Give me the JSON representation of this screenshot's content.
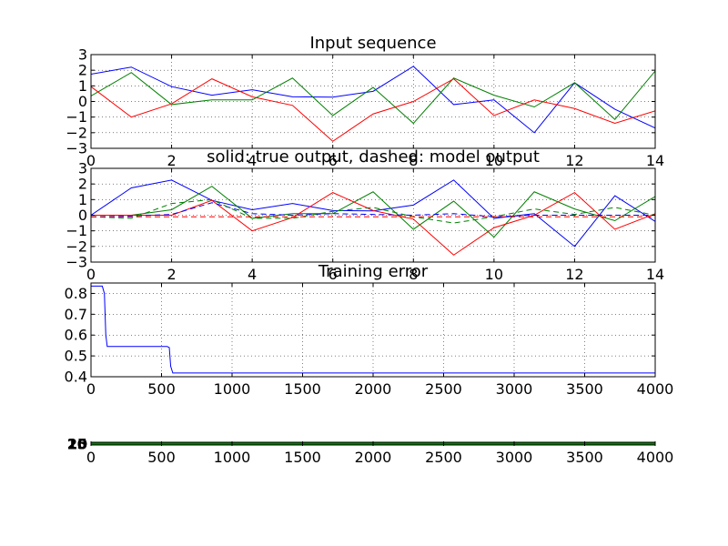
{
  "chart_data": [
    {
      "type": "line",
      "title": "Input sequence",
      "xlim": [
        0,
        14
      ],
      "ylim": [
        -3,
        3
      ],
      "xticks": [
        0,
        2,
        4,
        6,
        8,
        10,
        12,
        14
      ],
      "yticks": [
        -3,
        -2,
        -1,
        0,
        1,
        2,
        3
      ],
      "grid": true,
      "x": [
        0,
        1,
        2,
        3,
        4,
        5,
        6,
        7,
        8,
        9,
        10,
        11,
        12,
        13,
        14
      ],
      "series": [
        {
          "color": "#0000ff",
          "style": "solid",
          "values": [
            1.75,
            2.2,
            0.95,
            0.4,
            0.75,
            0.3,
            0.28,
            0.65,
            2.25,
            -0.2,
            0.1,
            -2.0,
            1.2,
            -0.5,
            -1.7
          ]
        },
        {
          "color": "#008000",
          "style": "solid",
          "values": [
            0.35,
            1.85,
            -0.2,
            0.1,
            0.1,
            1.5,
            -0.9,
            0.9,
            -1.4,
            1.5,
            0.4,
            -0.35,
            1.2,
            -1.15,
            1.95
          ]
        },
        {
          "color": "#ff0000",
          "style": "solid",
          "values": [
            0.95,
            -1.0,
            -0.15,
            1.45,
            0.3,
            -0.25,
            -2.55,
            -0.8,
            0.0,
            1.45,
            -0.9,
            0.1,
            -0.45,
            -1.4,
            -0.6
          ]
        }
      ]
    },
    {
      "type": "line",
      "title": "solid: true output, dashed: model output",
      "xlim": [
        0,
        14
      ],
      "ylim": [
        -3,
        3
      ],
      "xticks": [
        0,
        2,
        4,
        6,
        8,
        10,
        12,
        14
      ],
      "yticks": [
        -3,
        -2,
        -1,
        0,
        1,
        2,
        3
      ],
      "grid": true,
      "x": [
        0,
        1,
        2,
        3,
        4,
        5,
        6,
        7,
        8,
        9,
        10,
        11,
        12,
        13,
        14
      ],
      "series": [
        {
          "color": "#0000ff",
          "style": "solid",
          "values": [
            0.0,
            1.75,
            2.25,
            0.95,
            0.35,
            0.75,
            0.3,
            0.28,
            0.65,
            2.25,
            -0.2,
            0.1,
            -2.0,
            1.25,
            -0.4
          ]
        },
        {
          "color": "#008000",
          "style": "solid",
          "values": [
            0.0,
            0.0,
            0.35,
            1.85,
            -0.2,
            0.1,
            0.1,
            1.5,
            -0.9,
            0.9,
            -1.4,
            1.5,
            0.4,
            -0.35,
            1.2
          ]
        },
        {
          "color": "#ff0000",
          "style": "solid",
          "values": [
            0.0,
            0.0,
            0.0,
            0.95,
            -1.0,
            -0.15,
            1.45,
            0.3,
            -0.25,
            -2.55,
            -0.8,
            0.0,
            1.45,
            -0.9,
            0.1
          ]
        },
        {
          "color": "#0000ff",
          "style": "dashed",
          "values": [
            -0.1,
            -0.05,
            0.05,
            0.8,
            0.1,
            0.0,
            0.1,
            0.05,
            0.0,
            0.1,
            -0.1,
            0.0,
            0.0,
            0.0,
            0.0
          ]
        },
        {
          "color": "#008000",
          "style": "dashed",
          "values": [
            -0.1,
            -0.2,
            0.75,
            1.0,
            -0.2,
            -0.2,
            0.25,
            0.5,
            -0.1,
            -0.5,
            -0.1,
            0.4,
            0.05,
            0.5,
            0.0
          ]
        },
        {
          "color": "#ff0000",
          "style": "dashed",
          "values": [
            -0.1,
            -0.1,
            -0.1,
            -0.1,
            -0.1,
            -0.1,
            -0.1,
            -0.1,
            -0.1,
            -0.1,
            -0.1,
            -0.1,
            -0.1,
            -0.1,
            -0.1
          ]
        }
      ]
    },
    {
      "type": "line",
      "title": "Training error",
      "xlim": [
        0,
        4000
      ],
      "ylim": [
        0.4,
        0.85
      ],
      "xticks": [
        0,
        500,
        1000,
        1500,
        2000,
        2500,
        3000,
        3500,
        4000
      ],
      "yticks": [
        0.4,
        0.5,
        0.6,
        0.7,
        0.8
      ],
      "grid": true,
      "series": [
        {
          "color": "#0000ff",
          "style": "solid",
          "x": [
            0,
            80,
            95,
            105,
            115,
            540,
            555,
            565,
            580,
            4000
          ],
          "values": [
            0.835,
            0.835,
            0.8,
            0.6,
            0.545,
            0.545,
            0.54,
            0.45,
            0.418,
            0.418
          ]
        }
      ]
    },
    {
      "type": "line",
      "title": "",
      "xlim": [
        0,
        4000
      ],
      "xticks": [
        0,
        500,
        1000,
        1500,
        2000,
        2500,
        3000,
        3500,
        4000
      ],
      "ytick_labels": [
        "25",
        "20",
        "15",
        "10",
        "5",
        "0"
      ],
      "grid": true,
      "series": [
        {
          "color": "#0000ff",
          "style": "solid",
          "x": [
            0,
            580
          ],
          "values": [
            0.5,
            0.5
          ]
        },
        {
          "color": "#008000",
          "style": "solid",
          "x": [
            0,
            4000
          ],
          "values": [
            0.5,
            0.5
          ]
        }
      ]
    }
  ]
}
